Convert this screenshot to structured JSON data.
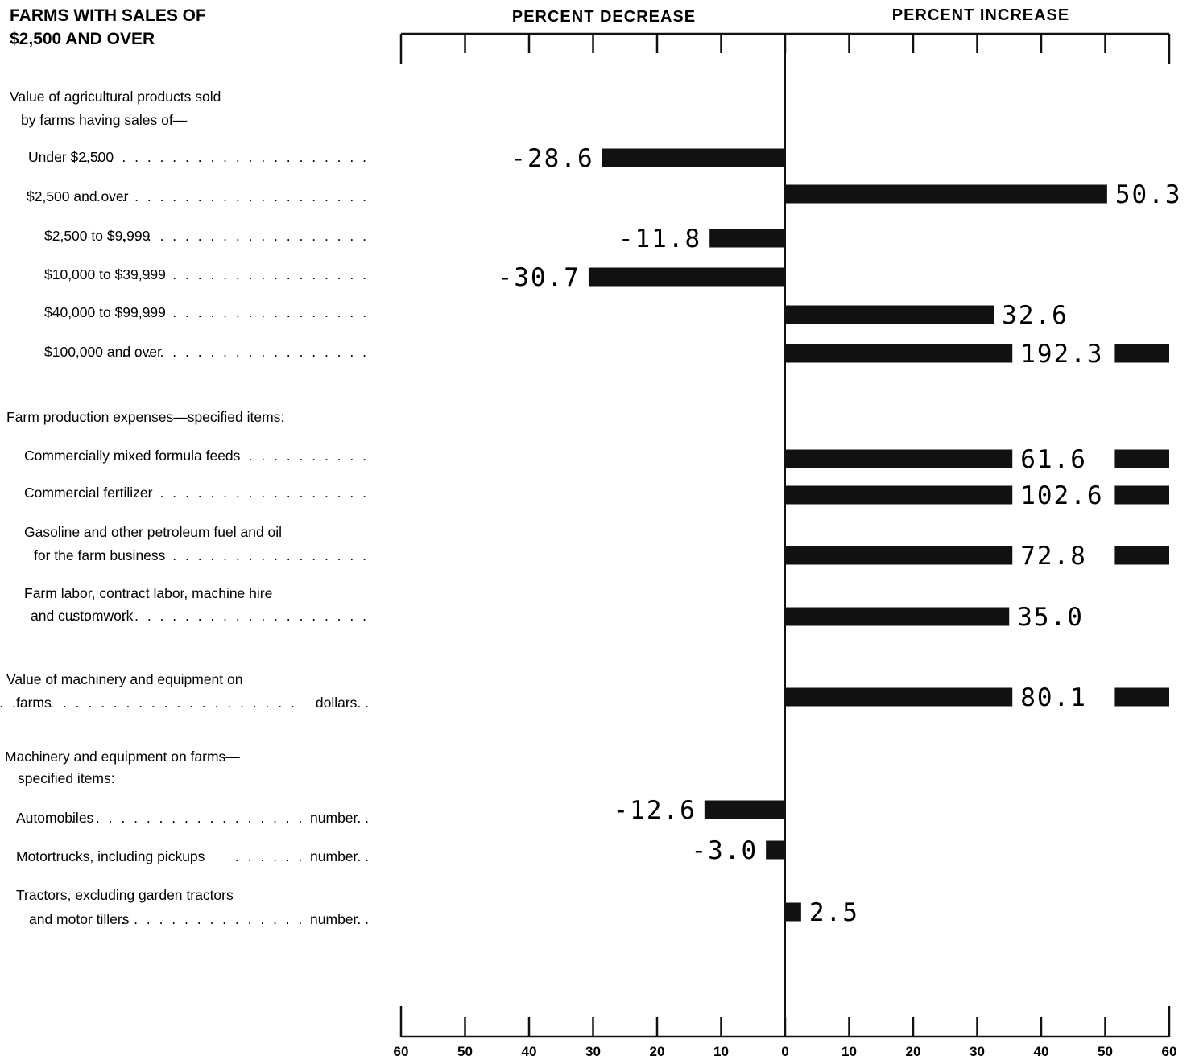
{
  "chart_data": {
    "type": "bar",
    "orientation": "horizontal",
    "title": [
      "FARMS WITH SALES OF",
      "$2,500 AND OVER"
    ],
    "left_header": "PERCENT DECREASE",
    "right_header": "PERCENT INCREASE",
    "xlim": [
      -60,
      60
    ],
    "x_tick_labels": [
      "60",
      "50",
      "40",
      "30",
      "20",
      "10",
      "0",
      "10",
      "20",
      "30",
      "40",
      "50",
      "60"
    ],
    "section_headings": [
      {
        "id": "h1",
        "lines": [
          "Value of agricultural products sold",
          "by farms having sales of—"
        ]
      },
      {
        "id": "h2",
        "lines": [
          "Farm production expenses—specified items:"
        ]
      },
      {
        "id": "h3",
        "lines": [
          "Machinery and equipment on farms—",
          "specified items:"
        ]
      }
    ],
    "categories": [
      {
        "lines": [
          "Under $2,500"
        ],
        "unit": "",
        "value": -28.6
      },
      {
        "lines": [
          "$2,500 and over"
        ],
        "unit": "",
        "value": 50.3
      },
      {
        "lines": [
          "$2,500 to $9,999"
        ],
        "unit": "",
        "value": -11.8
      },
      {
        "lines": [
          "$10,000 to $39,999"
        ],
        "unit": "",
        "value": -30.7
      },
      {
        "lines": [
          "$40,000 to $99,999"
        ],
        "unit": "",
        "value": 32.6
      },
      {
        "lines": [
          "$100,000 and over"
        ],
        "unit": "",
        "value": 192.3
      },
      {
        "lines": [
          "Commercially mixed formula feeds"
        ],
        "unit": "",
        "value": 61.6
      },
      {
        "lines": [
          "Commercial fertilizer"
        ],
        "unit": "",
        "value": 102.6
      },
      {
        "lines": [
          "Gasoline and other petroleum fuel and oil",
          "for the farm business"
        ],
        "unit": "",
        "value": 72.8
      },
      {
        "lines": [
          "Farm labor, contract labor, machine hire",
          "and customwork"
        ],
        "unit": "",
        "value": 35.0
      },
      {
        "lines": [
          "Value of machinery and equipment on",
          "farms"
        ],
        "unit": "dollars",
        "value": 80.1
      },
      {
        "lines": [
          "Automobiles"
        ],
        "unit": "number",
        "value": -12.6
      },
      {
        "lines": [
          "Motortrucks, including pickups"
        ],
        "unit": "number",
        "value": -3.0
      },
      {
        "lines": [
          "Tractors, excluding garden tractors",
          "and motor tillers"
        ],
        "unit": "number",
        "value": 2.5
      }
    ],
    "value_labels": [
      "-28.6",
      "50.3",
      "-11.8",
      "-30.7",
      "32.6",
      "192.3",
      "61.6",
      "102.6",
      "72.8",
      "35.0",
      "80.1",
      "-12.6",
      "-3.0",
      "2.5"
    ],
    "bar_color": "#111111"
  }
}
